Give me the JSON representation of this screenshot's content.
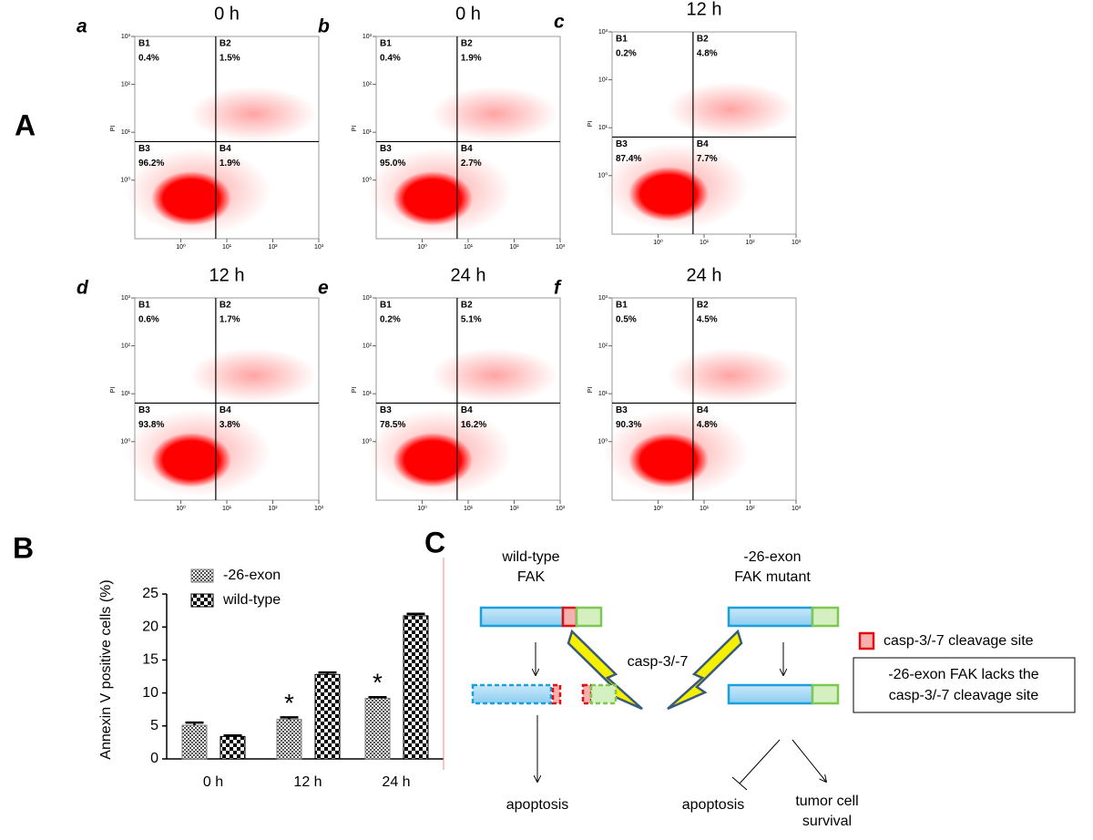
{
  "panel_a": {
    "label": "A",
    "y_axis_label": "PI",
    "xlim": [
      0.1,
      1000
    ],
    "ylim": [
      0.06,
      1000
    ],
    "log_scale": true,
    "xticks": [
      {
        "value": 1,
        "label": "10⁰"
      },
      {
        "value": 10,
        "label": "10¹"
      },
      {
        "value": 100,
        "label": "10²"
      },
      {
        "value": 1000,
        "label": "10³"
      }
    ],
    "yticks": [
      {
        "value": 1,
        "label": "10⁰"
      },
      {
        "value": 10,
        "label": "10¹"
      },
      {
        "value": 100,
        "label": "10²"
      },
      {
        "value": 1000,
        "label": "10³"
      }
    ],
    "plots": [
      {
        "letter": "a",
        "title": "0 h",
        "quadrants": [
          {
            "name": "B1",
            "percent": "0.4%"
          },
          {
            "name": "B2",
            "percent": "1.5%"
          },
          {
            "name": "B3",
            "percent": "96.2%"
          },
          {
            "name": "B4",
            "percent": "1.9%"
          }
        ]
      },
      {
        "letter": "b",
        "title": "0 h",
        "quadrants": [
          {
            "name": "B1",
            "percent": "0.4%"
          },
          {
            "name": "B2",
            "percent": "1.9%"
          },
          {
            "name": "B3",
            "percent": "95.0%"
          },
          {
            "name": "B4",
            "percent": "2.7%"
          }
        ]
      },
      {
        "letter": "c",
        "title": "12 h",
        "quadrants": [
          {
            "name": "B1",
            "percent": "0.2%"
          },
          {
            "name": "B2",
            "percent": "4.8%"
          },
          {
            "name": "B3",
            "percent": "87.4%"
          },
          {
            "name": "B4",
            "percent": "7.7%"
          }
        ]
      },
      {
        "letter": "d",
        "title": "12 h",
        "quadrants": [
          {
            "name": "B1",
            "percent": "0.6%"
          },
          {
            "name": "B2",
            "percent": "1.7%"
          },
          {
            "name": "B3",
            "percent": "93.8%"
          },
          {
            "name": "B4",
            "percent": "3.8%"
          }
        ]
      },
      {
        "letter": "e",
        "title": "24 h",
        "quadrants": [
          {
            "name": "B1",
            "percent": "0.2%"
          },
          {
            "name": "B2",
            "percent": "5.1%"
          },
          {
            "name": "B3",
            "percent": "78.5%"
          },
          {
            "name": "B4",
            "percent": "16.2%"
          }
        ]
      },
      {
        "letter": "f",
        "title": "24 h",
        "quadrants": [
          {
            "name": "B1",
            "percent": "0.5%"
          },
          {
            "name": "B2",
            "percent": "4.5%"
          },
          {
            "name": "B3",
            "percent": "90.3%"
          },
          {
            "name": "B4",
            "percent": "4.8%"
          }
        ]
      }
    ]
  },
  "panel_b": {
    "label": "B"
  },
  "chart_data": {
    "type": "bar",
    "y_label": "Annexin V positive cells (%)",
    "categories": [
      "0 h",
      "12 h",
      "24 h"
    ],
    "series": [
      {
        "name": "-26-exon",
        "color": "#808080",
        "values": [
          5.1,
          6.0,
          9.2
        ],
        "errors": [
          0.4,
          0.3,
          0.15
        ]
      },
      {
        "name": "wild-type",
        "color": "#000000",
        "values": [
          3.4,
          12.8,
          21.7
        ],
        "errors": [
          0.15,
          0.3,
          0.3
        ]
      }
    ],
    "asterisks": [
      null,
      "*",
      "*"
    ],
    "ylim": [
      0,
      25
    ],
    "yticks": [
      0,
      5,
      10,
      15,
      20,
      25
    ]
  },
  "panel_c": {
    "label": "C",
    "wild_type": [
      "wild-type",
      "FAK"
    ],
    "mutant": [
      "-26-exon",
      "FAK mutant"
    ],
    "enzyme": "casp-3/-7",
    "outcome_left": "apoptosis",
    "outcome_mid": "apoptosis",
    "outcome_right": [
      "tumor cell",
      "survival"
    ],
    "legend": "casp-3/-7 cleavage site",
    "note": [
      "-26-exon FAK lacks the",
      "casp-3/-7 cleavage site"
    ]
  }
}
